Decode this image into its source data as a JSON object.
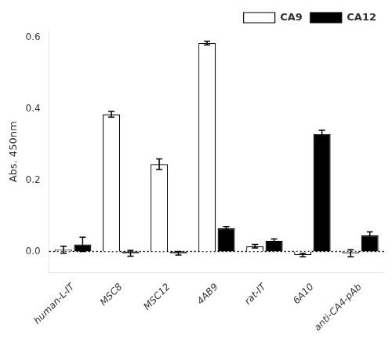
{
  "chart_data": {
    "type": "bar",
    "categories": [
      "human-L-IT",
      "MSC8",
      "MSC12",
      "4AB9",
      "rat-IT",
      "6A10",
      "anti-CA4-pAb"
    ],
    "series": [
      {
        "name": "CA9",
        "color": "white",
        "values": [
          0.005,
          0.385,
          0.245,
          0.585,
          0.015,
          -0.01,
          -0.005
        ],
        "errors": [
          0.01,
          0.008,
          0.015,
          0.005,
          0.005,
          0.005,
          0.01
        ]
      },
      {
        "name": "CA12",
        "color": "black",
        "values": [
          0.02,
          -0.005,
          -0.005,
          0.065,
          0.03,
          0.33,
          0.045
        ],
        "errors": [
          0.02,
          0.008,
          0.005,
          0.005,
          0.005,
          0.01,
          0.01
        ]
      }
    ],
    "ylabel": "Abs. 450nm",
    "ylim": [
      -0.06,
      0.62
    ],
    "yticks": [
      {
        "value": 0,
        "label": "0.0"
      },
      0.2,
      0.4,
      0.6
    ],
    "hline": 0,
    "grid": false,
    "legend": "upper right"
  }
}
